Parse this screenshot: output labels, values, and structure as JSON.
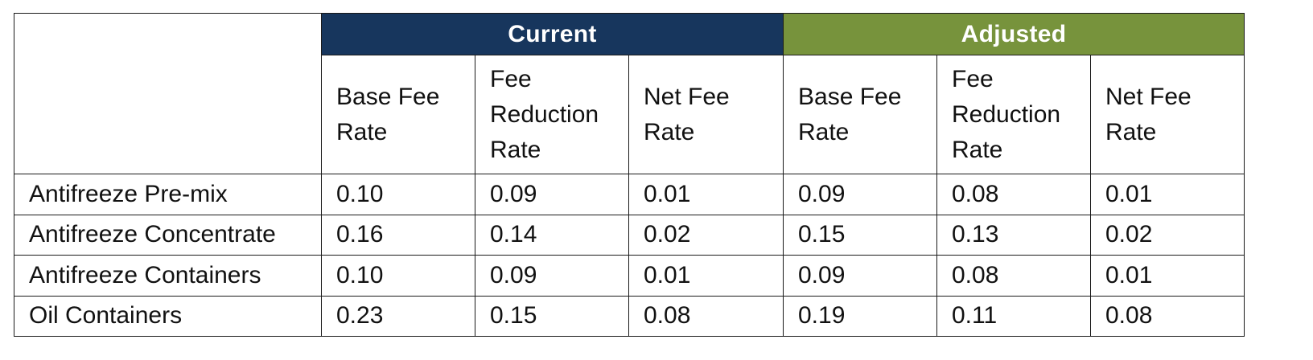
{
  "table": {
    "groups": [
      {
        "label": "Current",
        "color": "#17365d"
      },
      {
        "label": "Adjusted",
        "color": "#77933c"
      }
    ],
    "subheaders": [
      [
        "Base Fee",
        "Rate"
      ],
      [
        "Fee",
        "Reduction",
        "Rate"
      ],
      [
        "Net Fee",
        "Rate"
      ],
      [
        "Base Fee",
        "Rate"
      ],
      [
        "Fee",
        "Reduction",
        "Rate"
      ],
      [
        "Net Fee",
        "Rate"
      ]
    ],
    "rows": [
      {
        "label": "Antifreeze Pre-mix",
        "values": [
          "0.10",
          "0.09",
          "0.01",
          "0.09",
          "0.08",
          "0.01"
        ]
      },
      {
        "label": "Antifreeze Concentrate",
        "values": [
          "0.16",
          "0.14",
          "0.02",
          "0.15",
          "0.13",
          "0.02"
        ]
      },
      {
        "label": "Antifreeze Containers",
        "values": [
          "0.10",
          "0.09",
          "0.01",
          "0.09",
          "0.08",
          "0.01"
        ]
      },
      {
        "label": "Oil Containers",
        "values": [
          "0.23",
          "0.15",
          "0.08",
          "0.19",
          "0.11",
          "0.08"
        ]
      }
    ]
  }
}
